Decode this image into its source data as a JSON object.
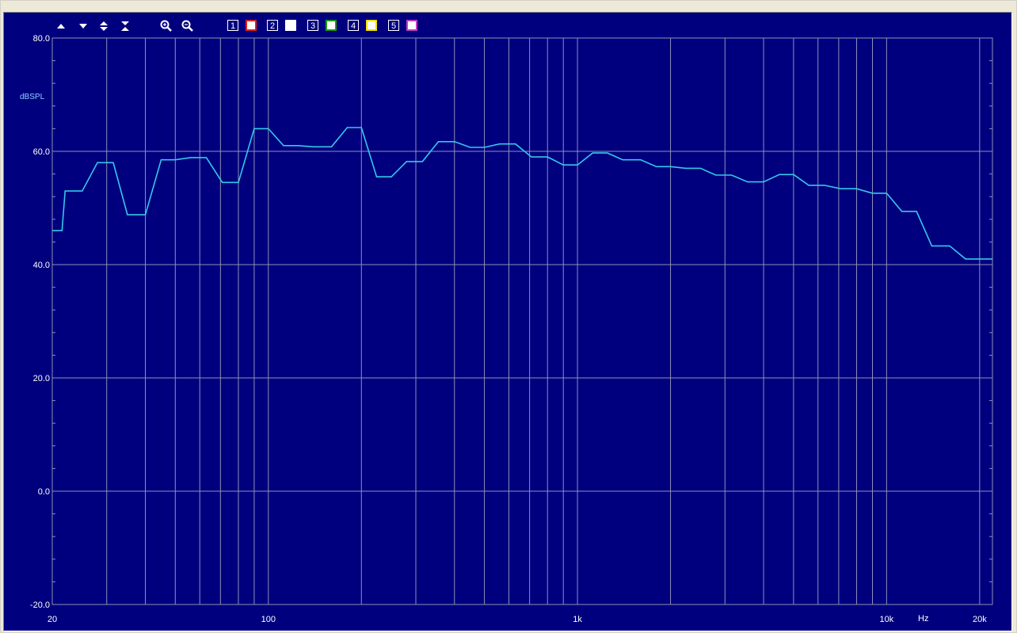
{
  "toolbar": {
    "buttons": [
      {
        "name": "scroll-up-icon"
      },
      {
        "name": "scroll-down-icon"
      },
      {
        "name": "expand-vertical-icon"
      },
      {
        "name": "compress-vertical-icon"
      },
      {
        "name": "zoom-in-icon"
      },
      {
        "name": "zoom-out-icon"
      }
    ],
    "traces": [
      {
        "label": "1",
        "color": "#e02020"
      },
      {
        "label": "2",
        "color": "#ffffff"
      },
      {
        "label": "3",
        "color": "#1a9a1a"
      },
      {
        "label": "4",
        "color": "#f0e000"
      },
      {
        "label": "5",
        "color": "#c040c0"
      }
    ]
  },
  "colors": {
    "background": "#00007f",
    "grid": "#8f8fb8",
    "text": "#ffffff",
    "trace": "#35c8e8",
    "ylabel": "#8fd0ff"
  },
  "chart_data": {
    "type": "line",
    "xscale": "log",
    "xlim": [
      20,
      22000
    ],
    "ylim": [
      -20,
      80
    ],
    "ylabel": "dBSPL",
    "xunit": "Hz",
    "grid": true,
    "ytick_labels": [
      "80.0",
      "60.0",
      "40.0",
      "20.0",
      "0.0",
      "-20.0"
    ],
    "yticks": [
      80,
      60,
      40,
      20,
      0,
      -20
    ],
    "xtick_labels": [
      "20",
      "100",
      "1k",
      "10k",
      "20k"
    ],
    "xticks": [
      20,
      100,
      1000,
      10000,
      20000
    ],
    "series": [
      {
        "x": [
          20,
          21.5,
          22,
          23.5,
          25,
          28,
          31.5,
          35,
          40,
          45,
          50,
          56,
          63,
          71,
          80,
          90,
          100,
          112,
          125,
          140,
          160,
          180,
          200,
          224,
          250,
          280,
          315,
          355,
          400,
          450,
          500,
          560,
          630,
          710,
          800,
          900,
          1000,
          1120,
          1250,
          1400,
          1600,
          1800,
          2000,
          2240,
          2500,
          2800,
          3150,
          3550,
          4000,
          4500,
          5000,
          5600,
          6300,
          7100,
          8000,
          9000,
          10000,
          11200,
          12500,
          14000,
          16000,
          18000,
          20000,
          22000
        ],
        "y": [
          46.0,
          46.0,
          53.0,
          53.0,
          53.0,
          58.0,
          58.0,
          48.8,
          48.8,
          58.5,
          58.5,
          58.9,
          58.9,
          54.5,
          54.5,
          64.0,
          64.0,
          61.0,
          61.0,
          60.8,
          60.8,
          64.2,
          64.2,
          55.5,
          55.5,
          58.2,
          58.2,
          61.7,
          61.7,
          60.7,
          60.7,
          61.3,
          61.3,
          59.0,
          59.0,
          57.6,
          57.6,
          59.7,
          59.7,
          58.5,
          58.5,
          57.3,
          57.3,
          57.0,
          57.0,
          55.8,
          55.8,
          54.6,
          54.6,
          55.9,
          55.9,
          54.0,
          54.0,
          53.4,
          53.4,
          52.6,
          52.6,
          49.4,
          49.4,
          43.3,
          43.3,
          41.0,
          41.0,
          41.0
        ]
      }
    ]
  }
}
